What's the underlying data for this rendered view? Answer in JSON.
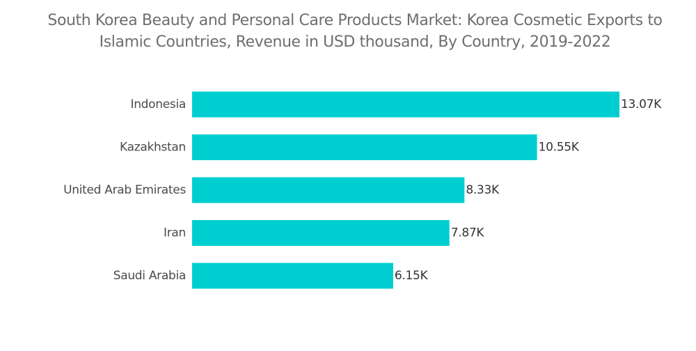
{
  "chart_data": {
    "type": "bar",
    "orientation": "horizontal",
    "title": "South Korea Beauty and Personal Care Products Market: Korea Cosmetic Exports to\nIslamic Countries, Revenue in USD thousand, By Country, 2019-2022",
    "categories": [
      "Indonesia",
      "Kazakhstan",
      "United Arab Emirates",
      "Iran",
      "Saudi Arabia"
    ],
    "values": [
      13.07,
      10.55,
      8.33,
      7.87,
      6.15
    ],
    "value_labels": [
      "13.07K",
      "10.55K",
      "8.33K",
      "7.87K",
      "6.15K"
    ],
    "xlabel": "",
    "ylabel": "",
    "xlim": [
      0,
      13.07
    ],
    "grid": false,
    "legend": "none",
    "bar_color": "#00CED1"
  }
}
